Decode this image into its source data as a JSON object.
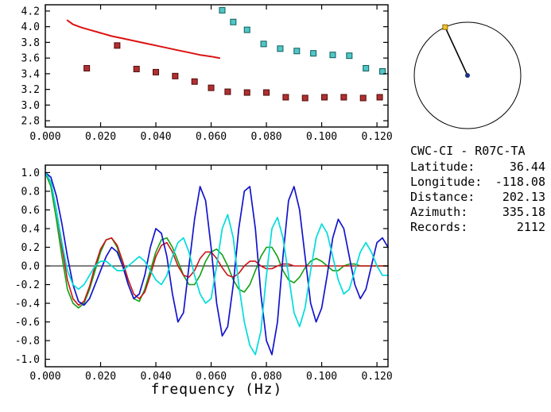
{
  "station_info": {
    "title": "CWC-CI - R07C-TA",
    "rows": [
      {
        "label": "Latitude:",
        "value": "36.44"
      },
      {
        "label": "Longitude:",
        "value": "-118.08"
      },
      {
        "label": "Distance:",
        "value": "202.13"
      },
      {
        "label": "Azimuth:",
        "value": "335.18"
      },
      {
        "label": "Records:",
        "value": "2112"
      }
    ]
  },
  "chart_data": [
    {
      "id": "dispersion-panel",
      "type": "scatter",
      "title": "",
      "xlabel": "",
      "ylabel": "",
      "xlim": [
        0,
        0.124
      ],
      "ylim": [
        2.72,
        4.28
      ],
      "grid": false,
      "xticks": [
        0,
        0.02,
        0.04,
        0.06,
        0.08,
        0.1,
        0.12
      ],
      "xtick_labels": [
        "0.000",
        "0.020",
        "0.040",
        "0.060",
        "0.080",
        "0.100",
        "0.120"
      ],
      "yticks": [
        2.8,
        3.0,
        3.2,
        3.4,
        3.6,
        3.8,
        4.0,
        4.2
      ],
      "ytick_labels": [
        "2.8",
        "3.0",
        "3.2",
        "3.4",
        "3.6",
        "3.8",
        "4.0",
        "4.2"
      ],
      "series": [
        {
          "name": "reference-dispersion-curve",
          "type": "line",
          "color": "#dd1111",
          "width": 2,
          "x": [
            0.008,
            0.01,
            0.013,
            0.016,
            0.02,
            0.024,
            0.028,
            0.032,
            0.036,
            0.04,
            0.044,
            0.048,
            0.052,
            0.056,
            0.06,
            0.063
          ],
          "y": [
            4.08,
            4.03,
            3.99,
            3.96,
            3.92,
            3.88,
            3.85,
            3.82,
            3.79,
            3.76,
            3.73,
            3.7,
            3.67,
            3.64,
            3.62,
            3.6
          ]
        },
        {
          "name": "group-velocity-picks",
          "type": "scatter",
          "marker": "square",
          "color": "#b03030",
          "edge": "#500a0a",
          "x": [
            0.015,
            0.026,
            0.033,
            0.04,
            0.047,
            0.054,
            0.06,
            0.066,
            0.073,
            0.08,
            0.087,
            0.094,
            0.101,
            0.108,
            0.115,
            0.121
          ],
          "y": [
            3.47,
            3.76,
            3.46,
            3.42,
            3.37,
            3.3,
            3.22,
            3.17,
            3.16,
            3.16,
            3.1,
            3.09,
            3.1,
            3.1,
            3.09,
            3.1
          ]
        },
        {
          "name": "phase-velocity-picks",
          "type": "scatter",
          "marker": "square",
          "color": "#52c6c6",
          "edge": "#0c5c5c",
          "x": [
            0.064,
            0.068,
            0.073,
            0.079,
            0.085,
            0.091,
            0.097,
            0.104,
            0.11,
            0.116,
            0.122
          ],
          "y": [
            4.21,
            4.06,
            3.96,
            3.78,
            3.72,
            3.69,
            3.66,
            3.64,
            3.63,
            3.47,
            3.43
          ]
        }
      ]
    },
    {
      "id": "waveform-panel",
      "type": "line",
      "title": "",
      "xlabel": "frequency (Hz)",
      "ylabel": "",
      "xlim": [
        0,
        0.124
      ],
      "ylim": [
        -1.08,
        1.08
      ],
      "grid": false,
      "zero_line": true,
      "xticks": [
        0,
        0.02,
        0.04,
        0.06,
        0.08,
        0.1,
        0.12
      ],
      "xtick_labels": [
        "0.000",
        "0.020",
        "0.040",
        "0.060",
        "0.080",
        "0.100",
        "0.120"
      ],
      "yticks": [
        -1.0,
        -0.8,
        -0.6,
        -0.4,
        -0.2,
        0.0,
        0.2,
        0.4,
        0.6,
        0.8,
        1.0
      ],
      "ytick_labels": [
        "-1.0",
        "-0.8",
        "-0.6",
        "-0.4",
        "-0.2",
        "0.0",
        "0.2",
        "0.4",
        "0.6",
        "0.8",
        "1.0"
      ],
      "series": [
        {
          "name": "waveform-green",
          "type": "line",
          "color": "#11a011",
          "width": 1.6,
          "x0": 0,
          "dx": 0.002,
          "y": [
            1.0,
            0.85,
            0.5,
            0.1,
            -0.25,
            -0.4,
            -0.45,
            -0.4,
            -0.25,
            -0.05,
            0.15,
            0.28,
            0.3,
            0.2,
            0.0,
            -0.2,
            -0.35,
            -0.38,
            -0.25,
            -0.05,
            0.15,
            0.28,
            0.3,
            0.2,
            0.05,
            -0.1,
            -0.2,
            -0.2,
            -0.1,
            0.05,
            0.15,
            0.18,
            0.12,
            0.0,
            -0.15,
            -0.25,
            -0.28,
            -0.2,
            -0.05,
            0.1,
            0.2,
            0.2,
            0.1,
            -0.05,
            -0.15,
            -0.18,
            -0.12,
            -0.02,
            0.05,
            0.08,
            0.05,
            0.0,
            -0.05,
            -0.05,
            0.0,
            0.02,
            0.02,
            0.0,
            0.0,
            0.0,
            0.0,
            0.0,
            0.0
          ]
        },
        {
          "name": "waveform-red",
          "type": "line",
          "color": "#cc1414",
          "width": 1.6,
          "x0": 0,
          "dx": 0.002,
          "y": [
            1.0,
            0.9,
            0.6,
            0.2,
            -0.15,
            -0.35,
            -0.42,
            -0.38,
            -0.22,
            0.0,
            0.18,
            0.28,
            0.3,
            0.22,
            0.05,
            -0.15,
            -0.3,
            -0.35,
            -0.28,
            -0.1,
            0.1,
            0.22,
            0.25,
            0.15,
            0.0,
            -0.1,
            -0.12,
            -0.05,
            0.08,
            0.15,
            0.15,
            0.08,
            -0.02,
            -0.1,
            -0.12,
            -0.08,
            0.0,
            0.05,
            0.05,
            0.0,
            -0.03,
            -0.03,
            0.0,
            0.02,
            0.02,
            0.0,
            0.0,
            0.0,
            0.0,
            0.0,
            0.0,
            0.0,
            0.0,
            0.0,
            0.0,
            0.0,
            0.0,
            0.0,
            0.0,
            0.0,
            0.0,
            0.0,
            0.0
          ]
        },
        {
          "name": "waveform-blue",
          "type": "line",
          "color": "#1414cc",
          "width": 1.7,
          "x0": 0,
          "dx": 0.002,
          "y": [
            1.0,
            0.95,
            0.75,
            0.45,
            0.1,
            -0.2,
            -0.38,
            -0.42,
            -0.35,
            -0.2,
            -0.05,
            0.1,
            0.2,
            0.15,
            0.0,
            -0.2,
            -0.35,
            -0.3,
            -0.1,
            0.2,
            0.4,
            0.35,
            0.1,
            -0.3,
            -0.6,
            -0.5,
            0.0,
            0.5,
            0.85,
            0.7,
            0.2,
            -0.4,
            -0.75,
            -0.65,
            -0.2,
            0.4,
            0.8,
            0.85,
            0.4,
            -0.3,
            -0.8,
            -0.95,
            -0.6,
            0.1,
            0.7,
            0.85,
            0.6,
            0.1,
            -0.4,
            -0.6,
            -0.45,
            -0.1,
            0.3,
            0.5,
            0.4,
            0.1,
            -0.2,
            -0.35,
            -0.25,
            0.0,
            0.25,
            0.3,
            0.2
          ]
        },
        {
          "name": "waveform-cyan",
          "type": "line",
          "color": "#00dcdc",
          "width": 1.7,
          "x0": 0,
          "dx": 0.002,
          "y": [
            1.0,
            0.9,
            0.6,
            0.25,
            -0.05,
            -0.2,
            -0.25,
            -0.2,
            -0.1,
            0.0,
            0.05,
            0.05,
            0.0,
            -0.05,
            -0.05,
            0.0,
            0.05,
            0.1,
            0.05,
            -0.05,
            -0.15,
            -0.2,
            -0.1,
            0.1,
            0.25,
            0.3,
            0.15,
            -0.1,
            -0.3,
            -0.4,
            -0.35,
            0.0,
            0.4,
            0.55,
            0.3,
            -0.2,
            -0.6,
            -0.85,
            -0.95,
            -0.7,
            -0.1,
            0.4,
            0.52,
            0.3,
            -0.1,
            -0.5,
            -0.65,
            -0.45,
            -0.05,
            0.3,
            0.45,
            0.35,
            0.1,
            -0.15,
            -0.3,
            -0.25,
            -0.05,
            0.15,
            0.25,
            0.15,
            0.0,
            -0.1,
            -0.1
          ]
        }
      ]
    },
    {
      "id": "azimuth-indicator",
      "type": "other",
      "azimuth_deg": 335.18,
      "circle_color": "#000000",
      "line_color": "#000000",
      "endpoint_marker_color": "#f2c12e",
      "endpoint_marker_edge": "#8a6a00",
      "center_dot_color": "#1e3282"
    }
  ]
}
